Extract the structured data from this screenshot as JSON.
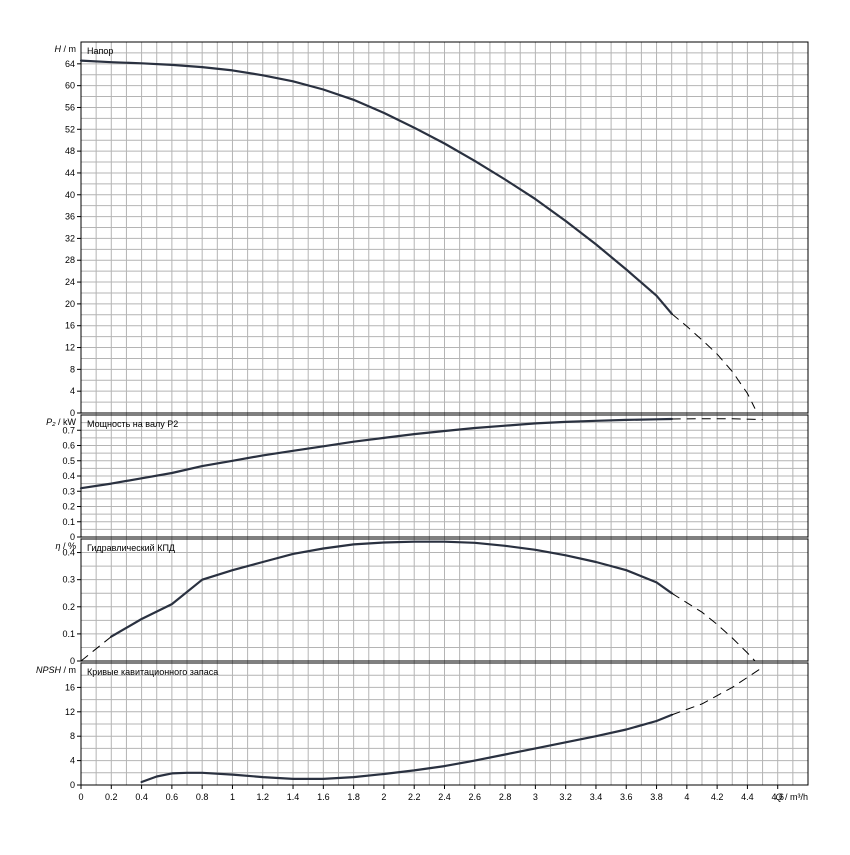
{
  "chart_data": [
    {
      "type": "line",
      "panel": "head",
      "title": "Напор",
      "ylabel_symbol": "H",
      "ylabel_unit": "m",
      "ylim": [
        0,
        68
      ],
      "yticks": [
        0,
        4,
        8,
        12,
        16,
        20,
        24,
        28,
        32,
        36,
        40,
        44,
        48,
        52,
        56,
        60,
        64
      ],
      "series": [
        {
          "solid": [
            [
              0,
              64.6
            ],
            [
              0.2,
              64.3
            ],
            [
              0.4,
              64.1
            ],
            [
              0.6,
              63.8
            ],
            [
              0.8,
              63.4
            ],
            [
              1.0,
              62.8
            ],
            [
              1.2,
              61.9
            ],
            [
              1.4,
              60.8
            ],
            [
              1.6,
              59.3
            ],
            [
              1.8,
              57.4
            ],
            [
              2.0,
              55.0
            ],
            [
              2.2,
              52.3
            ],
            [
              2.4,
              49.4
            ],
            [
              2.6,
              46.2
            ],
            [
              2.8,
              42.8
            ],
            [
              3.0,
              39.2
            ],
            [
              3.2,
              35.2
            ],
            [
              3.4,
              30.9
            ],
            [
              3.6,
              26.3
            ],
            [
              3.8,
              21.5
            ],
            [
              3.9,
              18.2
            ]
          ],
          "dashed": [
            [
              3.9,
              18.2
            ],
            [
              4.0,
              15.9
            ],
            [
              4.1,
              13.4
            ],
            [
              4.2,
              10.8
            ],
            [
              4.3,
              7.6
            ],
            [
              4.4,
              3.6
            ],
            [
              4.45,
              0.8
            ]
          ]
        }
      ]
    },
    {
      "type": "line",
      "panel": "power",
      "title": "Мощность на валу P2",
      "ylabel_symbol": "P₂",
      "ylabel_unit": "kW",
      "ylim": [
        0,
        0.8
      ],
      "yticks": [
        0,
        0.1,
        0.2,
        0.3,
        0.4,
        0.5,
        0.6,
        0.7
      ],
      "yticklabels": [
        "0",
        "0.1",
        "0.2",
        "0.3",
        "0.4",
        "0.5",
        "0.6",
        "0.7"
      ],
      "series": [
        {
          "solid": [
            [
              0,
              0.32
            ],
            [
              0.2,
              0.35
            ],
            [
              0.4,
              0.385
            ],
            [
              0.6,
              0.42
            ],
            [
              0.8,
              0.465
            ],
            [
              1.0,
              0.5
            ],
            [
              1.2,
              0.535
            ],
            [
              1.4,
              0.565
            ],
            [
              1.6,
              0.595
            ],
            [
              1.8,
              0.625
            ],
            [
              2.0,
              0.65
            ],
            [
              2.2,
              0.675
            ],
            [
              2.4,
              0.695
            ],
            [
              2.6,
              0.715
            ],
            [
              2.8,
              0.73
            ],
            [
              3.0,
              0.745
            ],
            [
              3.2,
              0.755
            ],
            [
              3.4,
              0.762
            ],
            [
              3.6,
              0.768
            ],
            [
              3.8,
              0.772
            ],
            [
              3.9,
              0.774
            ]
          ],
          "dashed": [
            [
              3.9,
              0.774
            ],
            [
              4.1,
              0.776
            ],
            [
              4.3,
              0.775
            ],
            [
              4.5,
              0.77
            ]
          ]
        }
      ]
    },
    {
      "type": "line",
      "panel": "efficiency",
      "title": "Гидравлический КПД",
      "ylabel_symbol": "η",
      "ylabel_unit": "%",
      "ylim": [
        0,
        0.45
      ],
      "yticks": [
        0,
        0.1,
        0.2,
        0.3,
        0.4
      ],
      "yticklabels": [
        "0",
        "0.1",
        "0.2",
        "0.3",
        "0.4"
      ],
      "series": [
        {
          "solid": [
            [
              0.2,
              0.09
            ],
            [
              0.4,
              0.155
            ],
            [
              0.6,
              0.21
            ],
            [
              0.8,
              0.3
            ],
            [
              1.0,
              0.335
            ],
            [
              1.2,
              0.365
            ],
            [
              1.4,
              0.395
            ],
            [
              1.6,
              0.415
            ],
            [
              1.8,
              0.43
            ],
            [
              2.0,
              0.437
            ],
            [
              2.2,
              0.44
            ],
            [
              2.4,
              0.44
            ],
            [
              2.6,
              0.436
            ],
            [
              2.8,
              0.425
            ],
            [
              3.0,
              0.41
            ],
            [
              3.2,
              0.39
            ],
            [
              3.4,
              0.365
            ],
            [
              3.6,
              0.335
            ],
            [
              3.8,
              0.29
            ],
            [
              3.9,
              0.25
            ]
          ],
          "dashed": [
            [
              0,
              0.0
            ],
            [
              0.1,
              0.045
            ],
            [
              0.2,
              0.09
            ]
          ],
          "dashed_end": [
            [
              3.9,
              0.25
            ],
            [
              4.0,
              0.215
            ],
            [
              4.1,
              0.18
            ],
            [
              4.2,
              0.135
            ],
            [
              4.3,
              0.085
            ],
            [
              4.4,
              0.03
            ],
            [
              4.45,
              0.0
            ]
          ]
        }
      ]
    },
    {
      "type": "line",
      "panel": "npsh",
      "title": "Кривые кавитационного запаса",
      "ylabel_symbol": "NPSH",
      "ylabel_unit": "m",
      "ylim": [
        0,
        20
      ],
      "yticks": [
        0,
        4,
        8,
        12,
        16
      ],
      "xlabel_symbol": "Q",
      "xlabel_unit": "m³/h",
      "xlim": [
        0,
        4.8
      ],
      "xticks": [
        0,
        0.2,
        0.4,
        0.6,
        0.8,
        1,
        1.2,
        1.4,
        1.6,
        1.8,
        2,
        2.2,
        2.4,
        2.6,
        2.8,
        3,
        3.2,
        3.4,
        3.6,
        3.8,
        4,
        4.2,
        4.4,
        4.6
      ],
      "xticklabels": [
        "0",
        "0.2",
        "0.4",
        "0.6",
        "0.8",
        "1",
        "1.2",
        "1.4",
        "1.6",
        "1.8",
        "2",
        "2.2",
        "2.4",
        "2.6",
        "2.8",
        "3",
        "3.2",
        "3.4",
        "3.6",
        "3.8",
        "4",
        "4.2",
        "4.4",
        "4.6"
      ],
      "series": [
        {
          "solid": [
            [
              0.4,
              0.5
            ],
            [
              0.5,
              1.4
            ],
            [
              0.6,
              1.9
            ],
            [
              0.7,
              2.0
            ],
            [
              0.8,
              2.0
            ],
            [
              1.0,
              1.7
            ],
            [
              1.2,
              1.3
            ],
            [
              1.4,
              1.0
            ],
            [
              1.6,
              1.0
            ],
            [
              1.8,
              1.3
            ],
            [
              2.0,
              1.8
            ],
            [
              2.2,
              2.4
            ],
            [
              2.4,
              3.1
            ],
            [
              2.6,
              4.0
            ],
            [
              2.8,
              5.0
            ],
            [
              3.0,
              6.0
            ],
            [
              3.2,
              7.0
            ],
            [
              3.4,
              8.0
            ],
            [
              3.6,
              9.1
            ],
            [
              3.8,
              10.5
            ],
            [
              3.9,
              11.5
            ]
          ],
          "dashed": [
            [
              3.9,
              11.5
            ],
            [
              4.1,
              13.3
            ],
            [
              4.3,
              16.0
            ],
            [
              4.5,
              19.3
            ]
          ]
        }
      ]
    }
  ]
}
